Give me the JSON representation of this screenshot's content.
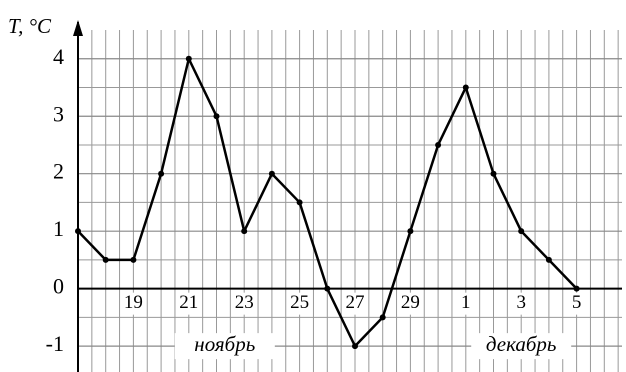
{
  "chart_data": {
    "type": "line",
    "ylabel": "T, °C",
    "categories": [
      null,
      null,
      "19",
      null,
      "21",
      null,
      "23",
      null,
      "25",
      null,
      "27",
      null,
      "29",
      null,
      "1",
      null,
      "3",
      null,
      "5"
    ],
    "series": [
      {
        "color": "#000000",
        "values": [
          1,
          0.5,
          0.5,
          2,
          4,
          3,
          1,
          2,
          1.5,
          0,
          -1,
          -0.5,
          1,
          2.5,
          3.5,
          2,
          1,
          0.5,
          0
        ]
      }
    ],
    "annotations": [
      "ноябрь",
      "декабрь"
    ],
    "ylim": [
      -1.45,
      4.5
    ],
    "yticks": [
      -1,
      0,
      1,
      2,
      3,
      4
    ],
    "grid": true
  }
}
